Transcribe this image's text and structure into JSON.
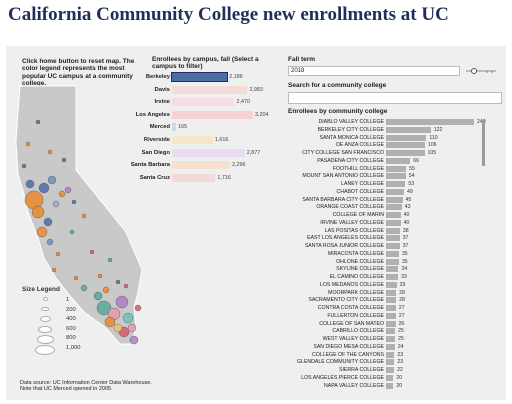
{
  "title": "California Community College new enrollments at UC",
  "hint": "Click home button to reset map. The color legend represents the most popular UC campus at a community college.",
  "size_legend": {
    "title": "Size Legend",
    "values": [
      "1",
      "200",
      "400",
      "600",
      "800",
      "1,000"
    ]
  },
  "source": "Data source: UC Information Center Data Warehouse. Note that UC Merced opened in 2005.",
  "campus_panel": {
    "header": "Enrollees by campus, fall (Select a campus to filter)",
    "max": 3400,
    "items": [
      {
        "name": "Berkeley",
        "value": 2186,
        "label": "2,186",
        "color": "#4a6fa5",
        "selected": true
      },
      {
        "name": "Davis",
        "value": 2983,
        "label": "2,983",
        "color": "#f3dcd8"
      },
      {
        "name": "Irvine",
        "value": 2470,
        "label": "2,470",
        "color": "#f5dde3"
      },
      {
        "name": "Los Angeles",
        "value": 3204,
        "label": "3,204",
        "color": "#f6d2d6"
      },
      {
        "name": "Merced",
        "value": 165,
        "label": "165",
        "color": "#cfd9e8"
      },
      {
        "name": "Riverside",
        "value": 1616,
        "label": "1,616",
        "color": "#f6e7c8"
      },
      {
        "name": "San Diego",
        "value": 2877,
        "label": "2,877",
        "color": "#eadcef"
      },
      {
        "name": "Santa Barbara",
        "value": 2296,
        "label": "2,296",
        "color": "#f6e1cf"
      },
      {
        "name": "Santa Cruz",
        "value": 1716,
        "label": "1,716",
        "color": "#f3d9d9"
      }
    ]
  },
  "fall_term": {
    "label": "Fall term",
    "value": "2018"
  },
  "search": {
    "label": "Search for a community college",
    "placeholder": ""
  },
  "college_panel": {
    "header": "Enrollees by community college",
    "max": 240,
    "items": [
      {
        "name": "DIABLO VALLEY COLLEGE",
        "value": 240
      },
      {
        "name": "BERKELEY CITY COLLEGE",
        "value": 122
      },
      {
        "name": "SANTA MONICA COLLEGE",
        "value": 110
      },
      {
        "name": "DE ANZA COLLEGE",
        "value": 106
      },
      {
        "name": "CITY COLLEGE SAN FRANCISCO",
        "value": 105
      },
      {
        "name": "PASADENA CITY COLLEGE",
        "value": 66
      },
      {
        "name": "FOOTHILL COLLEGE",
        "value": 55
      },
      {
        "name": "MOUNT SAN ANTONIO COLLEGE",
        "value": 54
      },
      {
        "name": "LANEY COLLEGE",
        "value": 53
      },
      {
        "name": "CHABOT COLLEGE",
        "value": 49
      },
      {
        "name": "SANTA BARBARA CITY COLLEGE",
        "value": 45
      },
      {
        "name": "ORANGE COAST COLLEGE",
        "value": 43
      },
      {
        "name": "COLLEGE OF MARIN",
        "value": 40
      },
      {
        "name": "IRVINE VALLEY COLLEGE",
        "value": 40
      },
      {
        "name": "LAS POSITAS COLLEGE",
        "value": 38
      },
      {
        "name": "EAST LOS ANGELES COLLEGE",
        "value": 37
      },
      {
        "name": "SANTA ROSA JUNIOR COLLEGE",
        "value": 37
      },
      {
        "name": "MIRACOSTA COLLEGE",
        "value": 35
      },
      {
        "name": "OHLONE COLLEGE",
        "value": 35
      },
      {
        "name": "SKYLINE COLLEGE",
        "value": 34
      },
      {
        "name": "EL CAMINO COLLEGE",
        "value": 33
      },
      {
        "name": "LOS MEDANOS COLLEGE",
        "value": 29
      },
      {
        "name": "MOORPARK COLLEGE",
        "value": 28
      },
      {
        "name": "SACRAMENTO CITY COLLEGE",
        "value": 28
      },
      {
        "name": "CONTRA COSTA COLLEGE",
        "value": 27
      },
      {
        "name": "FULLERTON COLLEGE",
        "value": 27
      },
      {
        "name": "COLLEGE OF SAN MATEO",
        "value": 26
      },
      {
        "name": "CABRILLO COLLEGE",
        "value": 25
      },
      {
        "name": "WEST VALLEY COLLEGE",
        "value": 25
      },
      {
        "name": "SAN DIEGO MESA COLLEGE",
        "value": 24
      },
      {
        "name": "COLLEGE OF THE CANYONS",
        "value": 23
      },
      {
        "name": "GLENDALE COMMUNITY COLLEGE",
        "value": 23
      },
      {
        "name": "SIERRA COLLEGE",
        "value": 22
      },
      {
        "name": "LOS ANGELES PIERCE COLLEGE",
        "value": 20
      },
      {
        "name": "NAPA VALLEY COLLEGE",
        "value": 20
      }
    ]
  },
  "colors": {
    "map_fill": "#c9c9c9",
    "panel_bg": "#efefef",
    "bar": "#b0b0b0",
    "title": "#1f2f5a"
  }
}
